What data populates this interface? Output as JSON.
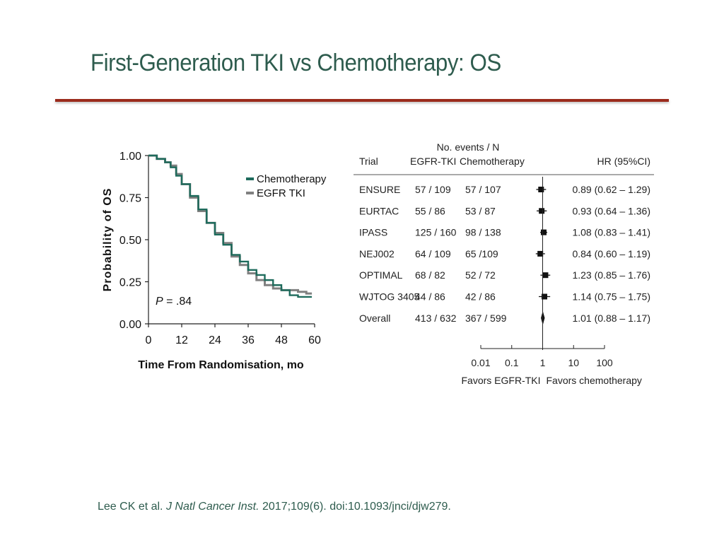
{
  "slide": {
    "title": "First-Generation TKI vs Chemotherapy: OS",
    "title_color": "#2e5c4e",
    "rule_color": "#9b2a1c"
  },
  "citation": {
    "authors": "Lee CK et al. ",
    "journal": "J Natl Cancer Inst.",
    "details": " 2017;109(6). doi:10.1093/jnci/djw279."
  },
  "chart_data": [
    {
      "type": "line",
      "subtype": "kaplan-meier",
      "xlabel": "Time From Randomisation, mo",
      "ylabel": "Probability of OS",
      "xlim": [
        0,
        60
      ],
      "ylim": [
        0,
        1
      ],
      "xticks": [
        "0",
        "12",
        "24",
        "36",
        "48",
        "60"
      ],
      "yticks": [
        "0.00",
        "0.25",
        "0.50",
        "0.75",
        "1.00"
      ],
      "legend_position": "top-right",
      "annotation": {
        "p_label": "P",
        "p_value": " = .84"
      },
      "series": [
        {
          "name": "Chemotherapy",
          "color": "#1e6b5c",
          "x": [
            0,
            3,
            6,
            8,
            10,
            12,
            15,
            18,
            21,
            24,
            27,
            30,
            33,
            36,
            39,
            42,
            45,
            48,
            51,
            54,
            57,
            59
          ],
          "y": [
            1.0,
            0.98,
            0.96,
            0.93,
            0.88,
            0.83,
            0.76,
            0.68,
            0.6,
            0.53,
            0.47,
            0.41,
            0.37,
            0.32,
            0.29,
            0.26,
            0.23,
            0.2,
            0.17,
            0.16,
            0.16,
            0.16
          ]
        },
        {
          "name": "EGFR TKI",
          "color": "#808080",
          "x": [
            0,
            3,
            6,
            8,
            10,
            12,
            15,
            18,
            21,
            24,
            27,
            30,
            33,
            36,
            39,
            42,
            45,
            48,
            51,
            54,
            57,
            59
          ],
          "y": [
            1.0,
            0.98,
            0.96,
            0.94,
            0.89,
            0.83,
            0.75,
            0.67,
            0.6,
            0.54,
            0.48,
            0.4,
            0.35,
            0.3,
            0.26,
            0.23,
            0.21,
            0.2,
            0.2,
            0.19,
            0.18,
            0.18
          ]
        }
      ]
    },
    {
      "type": "table",
      "subtype": "forest-plot",
      "header_top": "No. events / N",
      "columns": [
        "Trial",
        "EGFR-TKI",
        "Chemotherapy",
        "HR (95%CI)"
      ],
      "rows": [
        {
          "trial": "ENSURE",
          "egfr": "57 / 109",
          "chemo": "57 / 107",
          "hr_text": "0.89 (0.62 – 1.29)",
          "hr": 0.89,
          "lo": 0.62,
          "hi": 1.29
        },
        {
          "trial": "EURTAC",
          "egfr": "55  / 86",
          "chemo": "53 / 87",
          "hr_text": "0.93 (0.64 – 1.36)",
          "hr": 0.93,
          "lo": 0.64,
          "hi": 1.36
        },
        {
          "trial": "IPASS",
          "egfr": "125 / 160",
          "chemo": "98 / 138",
          "hr_text": "1.08 (0.83 – 1.41)",
          "hr": 1.08,
          "lo": 0.83,
          "hi": 1.41
        },
        {
          "trial": "NEJ002",
          "egfr": "64 / 109",
          "chemo": "65 /109",
          "hr_text": "0.84 (0.60 – 1.19)",
          "hr": 0.84,
          "lo": 0.6,
          "hi": 1.19
        },
        {
          "trial": "OPTIMAL",
          "egfr": "68 / 82",
          "chemo": "52 / 72",
          "hr_text": "1.23 (0.85 – 1.76)",
          "hr": 1.23,
          "lo": 0.85,
          "hi": 1.76
        },
        {
          "trial": "WJTOG 3405",
          "egfr": "44 / 86",
          "chemo": "42 / 86",
          "hr_text": "1.14 (0.75 – 1.75)",
          "hr": 1.14,
          "lo": 0.75,
          "hi": 1.75
        }
      ],
      "overall": {
        "trial": "Overall",
        "egfr": "413 / 632",
        "chemo": "367 / 599",
        "hr_text": "1.01 (0.88 – 1.17)",
        "hr": 1.01,
        "lo": 0.88,
        "hi": 1.17
      },
      "x_scale": "log",
      "xlim": [
        0.01,
        100
      ],
      "xticks": [
        "0.01",
        "0.1",
        "1",
        "10",
        "100"
      ],
      "favors_left": "Favors EGFR-TKI",
      "favors_right": "Favors chemotherapy"
    }
  ]
}
